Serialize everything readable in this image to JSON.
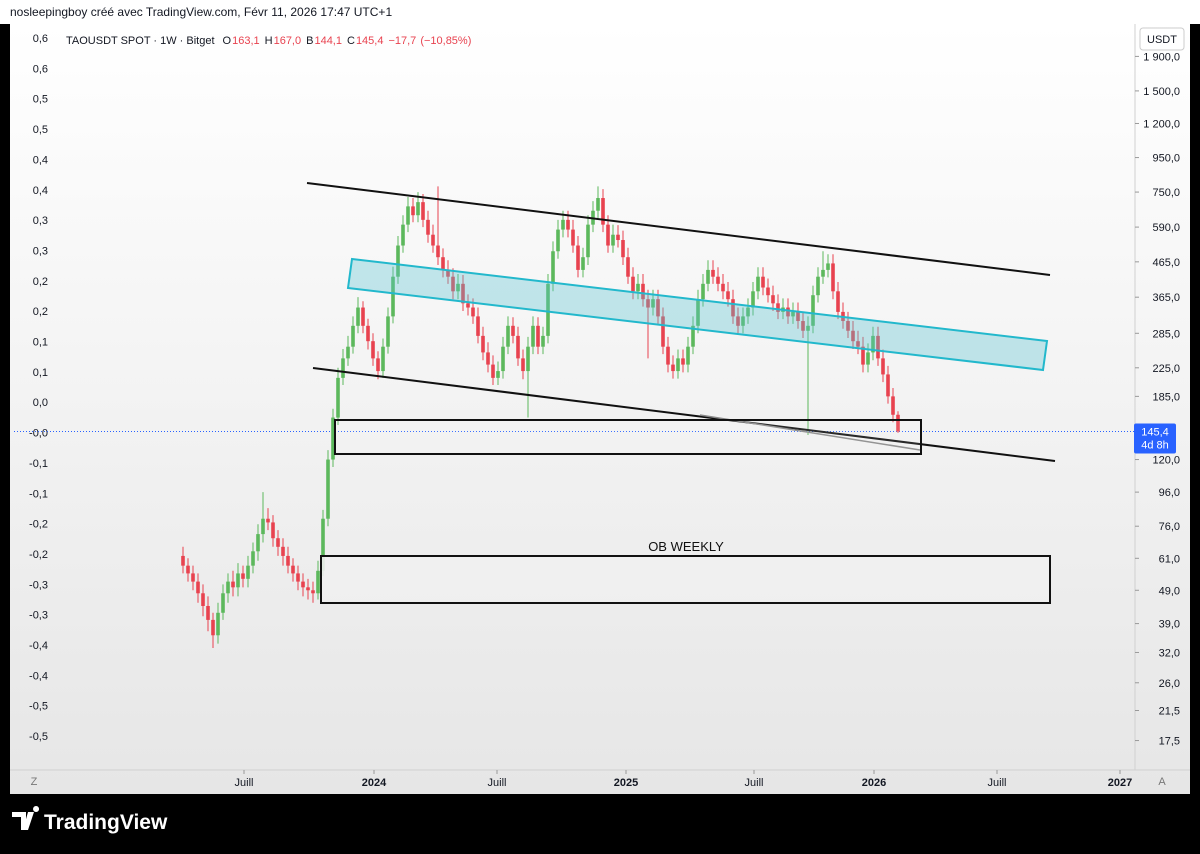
{
  "header": {
    "author_line": "nosleepingboy créé avec TradingView.com, Févr 11, 2026 17:47 UTC+1",
    "brand": "TradingView"
  },
  "chart_data": {
    "type": "candlestick",
    "legend": {
      "symbol": "TAOUSDT SPOT · 1W · Bitget",
      "fields": [
        {
          "key": "O",
          "value": "163,1"
        },
        {
          "key": "H",
          "value": "167,0"
        },
        {
          "key": "B",
          "value": "144,1"
        },
        {
          "key": "C",
          "value": "145,4"
        }
      ],
      "change": "−17,7",
      "change_pct": "(−10,85%)"
    },
    "currency": "USDT",
    "annotation": "OB WEEKLY",
    "up_color": "#5cb85c",
    "down_color": "#e8424f",
    "log_scale": true,
    "ylim": [
      14.5,
      2340
    ],
    "yticks": [
      {
        "value": 1900,
        "label": "1 900,0"
      },
      {
        "value": 1500,
        "label": "1 500,0"
      },
      {
        "value": 1200,
        "label": "1 200,0"
      },
      {
        "value": 950,
        "label": "950,0"
      },
      {
        "value": 750,
        "label": "750,0"
      },
      {
        "value": 590,
        "label": "590,0"
      },
      {
        "value": 465,
        "label": "465,0"
      },
      {
        "value": 365,
        "label": "365,0"
      },
      {
        "value": 285,
        "label": "285,0"
      },
      {
        "value": 225,
        "label": "225,0"
      },
      {
        "value": 185,
        "label": "185,0"
      },
      {
        "value": 120,
        "label": "120,0"
      },
      {
        "value": 96,
        "label": "96,0"
      },
      {
        "value": 76,
        "label": "76,0"
      },
      {
        "value": 61,
        "label": "61,0"
      },
      {
        "value": 49,
        "label": "49,0"
      },
      {
        "value": 39,
        "label": "39,0"
      },
      {
        "value": 32,
        "label": "32,0"
      },
      {
        "value": 26,
        "label": "26,0"
      },
      {
        "value": 21.5,
        "label": "21,5"
      },
      {
        "value": 17.5,
        "label": "17,5"
      }
    ],
    "left_axis_labels": [
      "0,6",
      "0,6",
      "0,5",
      "0,5",
      "0,4",
      "0,4",
      "0,3",
      "0,3",
      "0,2",
      "0,2",
      "0,1",
      "0,1",
      "0,0",
      "-0,0",
      "-0,1",
      "-0,1",
      "-0,2",
      "-0,2",
      "-0,3",
      "-0,3",
      "-0,4",
      "-0,4",
      "-0,5",
      "-0,5"
    ],
    "xlim": [
      -33.8,
      190
    ],
    "xticks": [
      {
        "value": 12.2,
        "label": "Juill"
      },
      {
        "value": 38.2,
        "label": "2024"
      },
      {
        "value": 62.8,
        "label": "Juill"
      },
      {
        "value": 88.6,
        "label": "2025"
      },
      {
        "value": 114.2,
        "label": "Juill"
      },
      {
        "value": 138.2,
        "label": "2026"
      },
      {
        "value": 162.8,
        "label": "Juill"
      },
      {
        "value": 187.4,
        "label": "2027"
      }
    ],
    "price_label": {
      "value": 145.4,
      "label": "145,4"
    },
    "countdown": "4d 8h",
    "buttons": [
      "Z",
      "A"
    ],
    "candles": [
      [
        62,
        66,
        55,
        58
      ],
      [
        58,
        61,
        52,
        55
      ],
      [
        55,
        58,
        49,
        52
      ],
      [
        52,
        55,
        45,
        48
      ],
      [
        48,
        51,
        41,
        44
      ],
      [
        44,
        47,
        37,
        40
      ],
      [
        40,
        42,
        33,
        36
      ],
      [
        36,
        45,
        34,
        42
      ],
      [
        42,
        51,
        40,
        48
      ],
      [
        48,
        55,
        45,
        52
      ],
      [
        52,
        56,
        47,
        50
      ],
      [
        50,
        59,
        47,
        55
      ],
      [
        55,
        58,
        50,
        53
      ],
      [
        53,
        62,
        50,
        58
      ],
      [
        58,
        68,
        55,
        64
      ],
      [
        64,
        77,
        60,
        72
      ],
      [
        72,
        96,
        68,
        80
      ],
      [
        80,
        86,
        74,
        78
      ],
      [
        78,
        82,
        66,
        70
      ],
      [
        70,
        74,
        62,
        66
      ],
      [
        66,
        70,
        58,
        62
      ],
      [
        62,
        66,
        55,
        58
      ],
      [
        58,
        61,
        52,
        55
      ],
      [
        55,
        58,
        49,
        52
      ],
      [
        52,
        55,
        47,
        50
      ],
      [
        50,
        53,
        46,
        49
      ],
      [
        49,
        52,
        45,
        48
      ],
      [
        48,
        60,
        46,
        56
      ],
      [
        56,
        85,
        54,
        80
      ],
      [
        80,
        128,
        76,
        120
      ],
      [
        120,
        170,
        114,
        160
      ],
      [
        160,
        225,
        152,
        210
      ],
      [
        210,
        256,
        200,
        240
      ],
      [
        240,
        280,
        228,
        260
      ],
      [
        260,
        320,
        248,
        300
      ],
      [
        300,
        365,
        285,
        340
      ],
      [
        340,
        355,
        285,
        300
      ],
      [
        300,
        315,
        255,
        270
      ],
      [
        270,
        285,
        228,
        240
      ],
      [
        240,
        252,
        208,
        220
      ],
      [
        220,
        275,
        210,
        260
      ],
      [
        260,
        340,
        248,
        320
      ],
      [
        320,
        450,
        305,
        420
      ],
      [
        420,
        555,
        400,
        520
      ],
      [
        520,
        640,
        495,
        600
      ],
      [
        600,
        725,
        570,
        680
      ],
      [
        680,
        720,
        610,
        640
      ],
      [
        640,
        750,
        610,
        700
      ],
      [
        700,
        740,
        590,
        620
      ],
      [
        620,
        660,
        530,
        560
      ],
      [
        560,
        600,
        495,
        520
      ],
      [
        520,
        780,
        455,
        480
      ],
      [
        480,
        510,
        418,
        440
      ],
      [
        440,
        470,
        400,
        420
      ],
      [
        420,
        445,
        360,
        380
      ],
      [
        380,
        428,
        360,
        400
      ],
      [
        400,
        425,
        332,
        350
      ],
      [
        350,
        372,
        322,
        340
      ],
      [
        340,
        362,
        304,
        320
      ],
      [
        320,
        340,
        266,
        280
      ],
      [
        280,
        298,
        237,
        250
      ],
      [
        250,
        268,
        218,
        230
      ],
      [
        230,
        245,
        200,
        210
      ],
      [
        210,
        235,
        200,
        220
      ],
      [
        220,
        278,
        209,
        260
      ],
      [
        260,
        320,
        247,
        300
      ],
      [
        300,
        318,
        266,
        280
      ],
      [
        280,
        298,
        228,
        240
      ],
      [
        240,
        255,
        208,
        220
      ],
      [
        220,
        278,
        160,
        260
      ],
      [
        260,
        320,
        247,
        300
      ],
      [
        300,
        318,
        247,
        260
      ],
      [
        260,
        298,
        247,
        280
      ],
      [
        280,
        428,
        266,
        400
      ],
      [
        400,
        535,
        380,
        500
      ],
      [
        500,
        620,
        475,
        580
      ],
      [
        580,
        660,
        550,
        620
      ],
      [
        620,
        660,
        550,
        580
      ],
      [
        580,
        620,
        495,
        520
      ],
      [
        520,
        555,
        418,
        440
      ],
      [
        440,
        512,
        418,
        480
      ],
      [
        480,
        640,
        455,
        600
      ],
      [
        600,
        705,
        570,
        660
      ],
      [
        660,
        780,
        627,
        720
      ],
      [
        720,
        765,
        570,
        600
      ],
      [
        600,
        640,
        495,
        520
      ],
      [
        520,
        600,
        495,
        560
      ],
      [
        560,
        598,
        513,
        540
      ],
      [
        540,
        576,
        455,
        480
      ],
      [
        480,
        512,
        400,
        420
      ],
      [
        420,
        448,
        360,
        380
      ],
      [
        380,
        428,
        360,
        400
      ],
      [
        400,
        428,
        342,
        360
      ],
      [
        360,
        384,
        240,
        340
      ],
      [
        340,
        384,
        322,
        360
      ],
      [
        360,
        384,
        304,
        320
      ],
      [
        320,
        340,
        247,
        260
      ],
      [
        260,
        278,
        218,
        230
      ],
      [
        230,
        245,
        209,
        220
      ],
      [
        220,
        255,
        209,
        240
      ],
      [
        240,
        255,
        218,
        230
      ],
      [
        230,
        278,
        218,
        260
      ],
      [
        260,
        320,
        247,
        300
      ],
      [
        300,
        384,
        285,
        360
      ],
      [
        360,
        428,
        342,
        400
      ],
      [
        400,
        470,
        380,
        440
      ],
      [
        440,
        470,
        400,
        420
      ],
      [
        420,
        448,
        380,
        400
      ],
      [
        400,
        428,
        360,
        380
      ],
      [
        380,
        405,
        342,
        360
      ],
      [
        360,
        384,
        304,
        320
      ],
      [
        320,
        340,
        285,
        300
      ],
      [
        300,
        340,
        285,
        320
      ],
      [
        320,
        362,
        304,
        340
      ],
      [
        340,
        405,
        322,
        380
      ],
      [
        380,
        448,
        360,
        420
      ],
      [
        420,
        448,
        370,
        390
      ],
      [
        390,
        415,
        352,
        370
      ],
      [
        370,
        395,
        332,
        350
      ],
      [
        350,
        372,
        314,
        330
      ],
      [
        330,
        362,
        314,
        340
      ],
      [
        340,
        362,
        304,
        320
      ],
      [
        320,
        352,
        304,
        330
      ],
      [
        330,
        352,
        294,
        310
      ],
      [
        310,
        330,
        276,
        290
      ],
      [
        290,
        320,
        142,
        300
      ],
      [
        300,
        395,
        285,
        370
      ],
      [
        370,
        448,
        352,
        420
      ],
      [
        420,
        500,
        400,
        440
      ],
      [
        440,
        490,
        418,
        460
      ],
      [
        460,
        490,
        360,
        380
      ],
      [
        380,
        405,
        314,
        330
      ],
      [
        330,
        352,
        294,
        310
      ],
      [
        310,
        330,
        276,
        290
      ],
      [
        290,
        310,
        256,
        270
      ],
      [
        270,
        290,
        247,
        260
      ],
      [
        260,
        278,
        218,
        230
      ],
      [
        230,
        266,
        218,
        250
      ],
      [
        250,
        298,
        237,
        280
      ],
      [
        280,
        298,
        228,
        240
      ],
      [
        240,
        255,
        204,
        215
      ],
      [
        215,
        228,
        176,
        185
      ],
      [
        185,
        196,
        155,
        163.1
      ],
      [
        163.1,
        167,
        144.1,
        145.4
      ]
    ]
  }
}
